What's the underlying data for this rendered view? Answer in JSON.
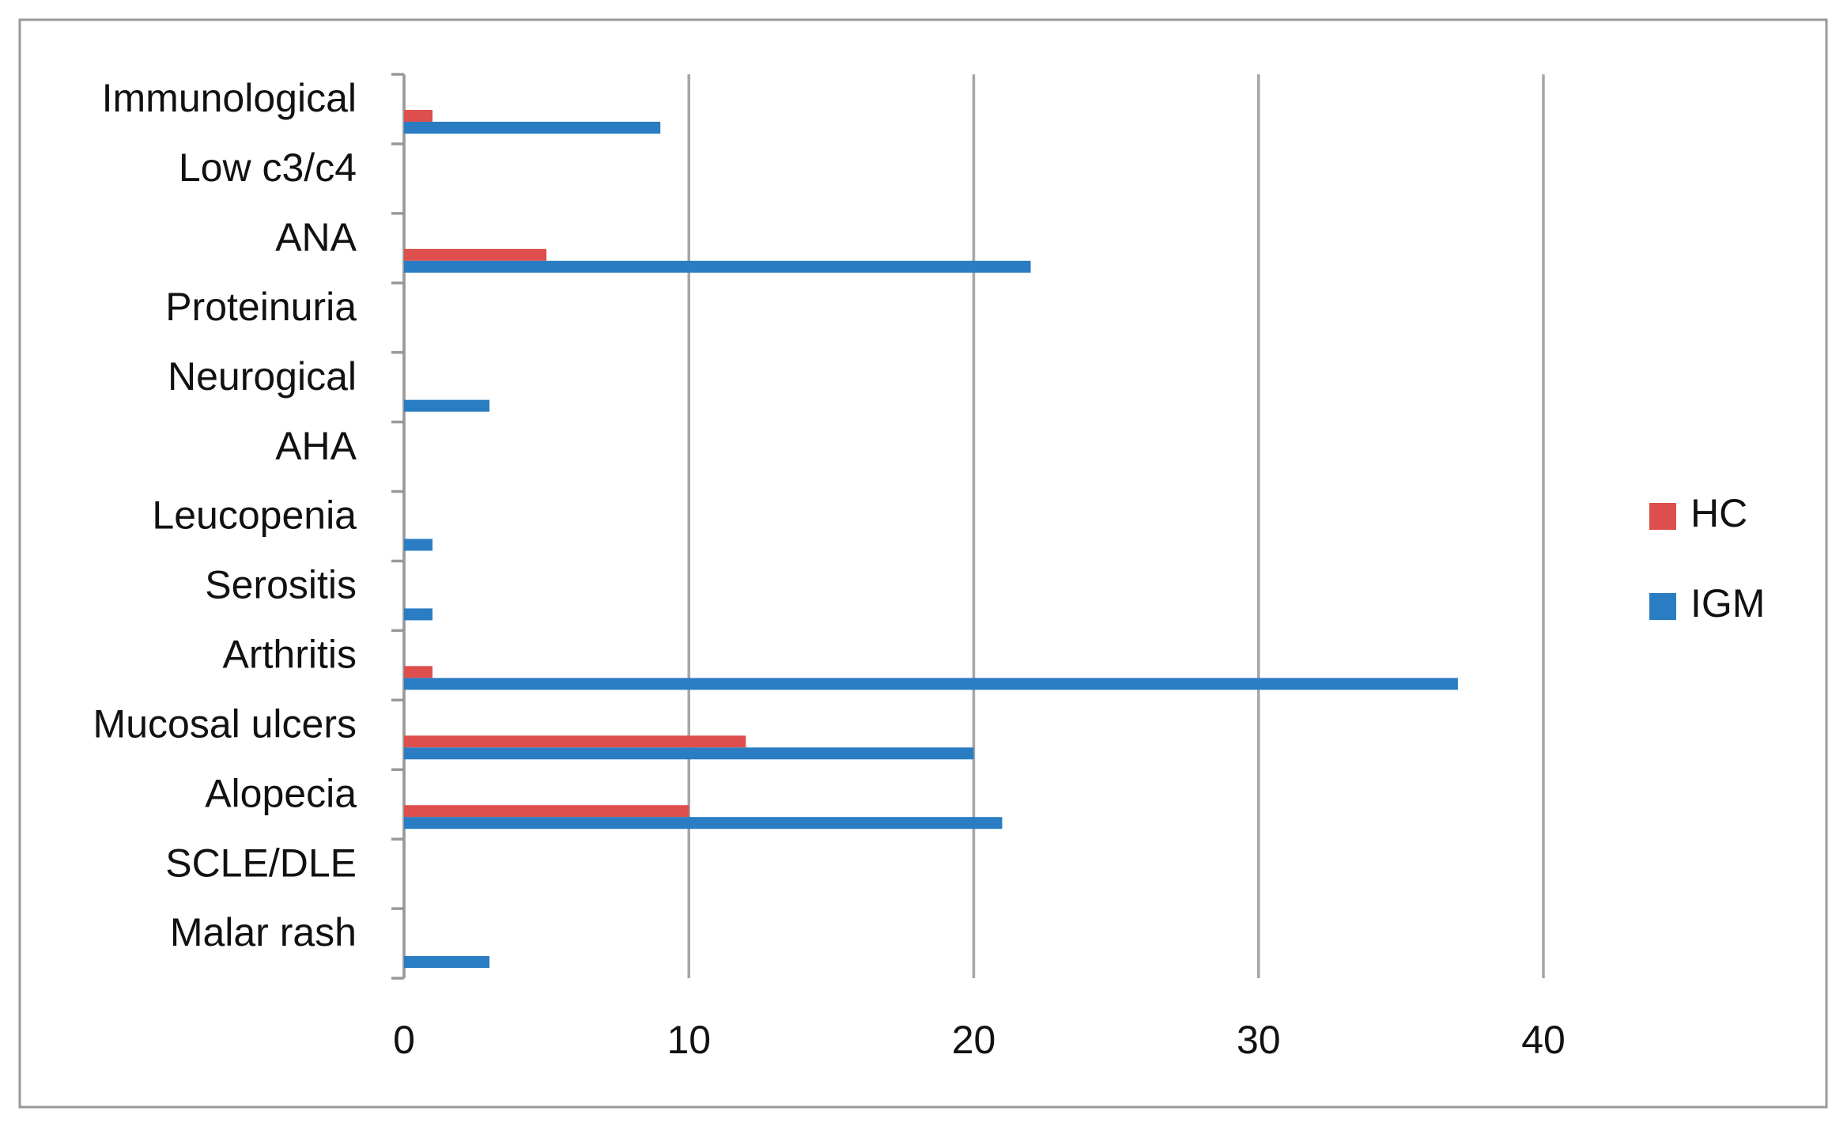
{
  "chart_data": {
    "type": "bar",
    "categories": [
      "Malar rash",
      "SCLE/DLE",
      "Alopecia",
      "Mucosal ulcers",
      "Arthritis",
      "Serositis",
      "Leucopenia",
      "AHA",
      "Neurogical",
      "Proteinuria",
      "ANA",
      "Low c3/c4",
      "Immunological"
    ],
    "series": [
      {
        "name": "HC",
        "color": "#dd4e4c",
        "values": [
          0,
          0,
          10,
          12,
          1,
          0,
          0,
          0,
          0,
          0,
          5,
          0,
          1
        ]
      },
      {
        "name": "IGM",
        "color": "#2a7dc2",
        "values": [
          3,
          0,
          21,
          20,
          37,
          1,
          1,
          0,
          3,
          0,
          22,
          0,
          9
        ]
      }
    ],
    "xlim": [
      0,
      40
    ],
    "xticks": [
      0,
      10,
      20,
      30,
      40
    ],
    "grid": true,
    "legend": "right"
  }
}
